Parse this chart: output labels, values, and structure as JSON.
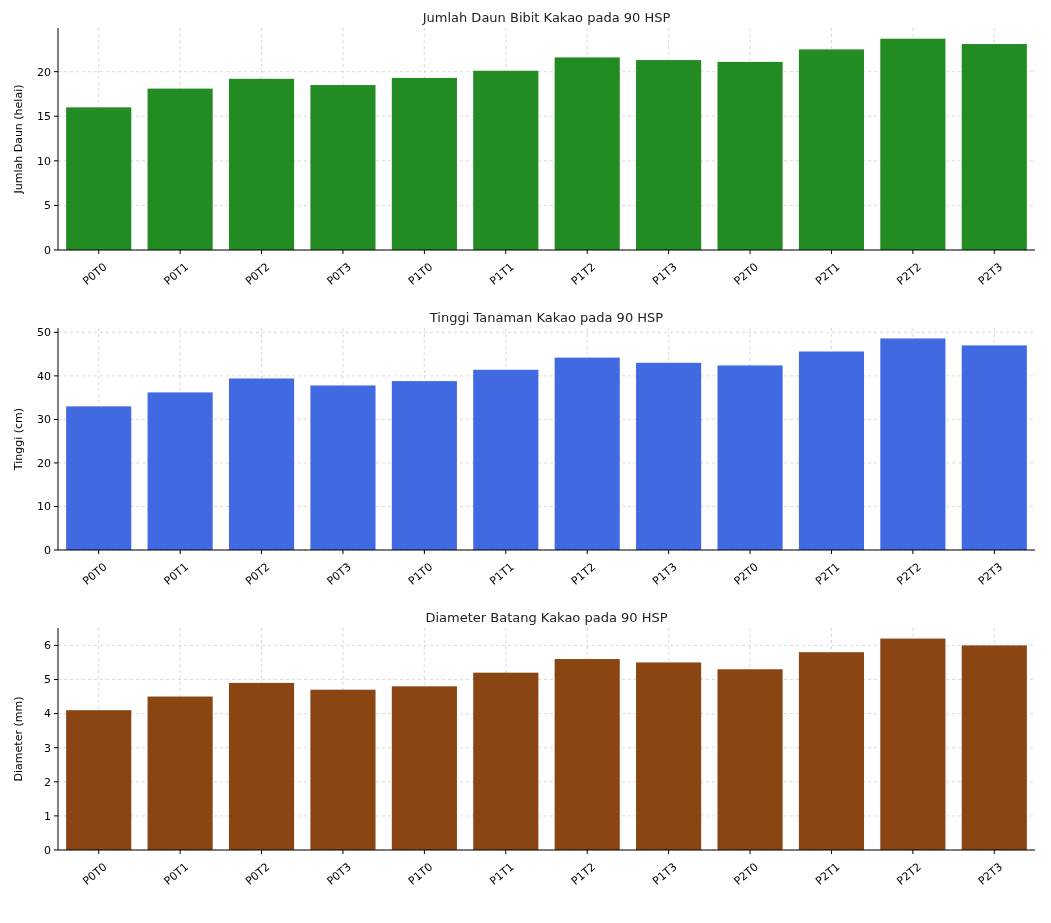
{
  "chart_data": [
    {
      "type": "bar",
      "title": "Jumlah Daun Bibit Kakao pada 90 HSP",
      "ylabel": "Jumlah Daun (helai)",
      "categories": [
        "P0T0",
        "P0T1",
        "P0T2",
        "P0T3",
        "P1T0",
        "P1T1",
        "P1T2",
        "P1T3",
        "P2T0",
        "P2T1",
        "P2T2",
        "P2T3"
      ],
      "values": [
        16.0,
        18.1,
        19.2,
        18.5,
        19.3,
        20.1,
        21.6,
        21.3,
        21.1,
        22.5,
        23.7,
        23.1
      ],
      "color": "#228b22",
      "ylim": [
        0,
        24.9
      ],
      "yticks": [
        0,
        5,
        10,
        15,
        20
      ],
      "grid": true
    },
    {
      "type": "bar",
      "title": "Tinggi Tanaman Kakao pada 90 HSP",
      "ylabel": "Tinggi (cm)",
      "categories": [
        "P0T0",
        "P0T1",
        "P0T2",
        "P0T3",
        "P1T0",
        "P1T1",
        "P1T2",
        "P1T3",
        "P2T0",
        "P2T1",
        "P2T2",
        "P2T3"
      ],
      "values": [
        33.0,
        36.2,
        39.4,
        37.8,
        38.8,
        41.4,
        44.2,
        43.0,
        42.4,
        45.6,
        48.6,
        47.0
      ],
      "color": "#4169e1",
      "ylim": [
        0,
        51
      ],
      "yticks": [
        0,
        10,
        20,
        30,
        40,
        50
      ],
      "grid": true
    },
    {
      "type": "bar",
      "title": "Diameter Batang Kakao pada 90 HSP",
      "ylabel": "Diameter (mm)",
      "categories": [
        "P0T0",
        "P0T1",
        "P0T2",
        "P0T3",
        "P1T0",
        "P1T1",
        "P1T2",
        "P1T3",
        "P2T0",
        "P2T1",
        "P2T2",
        "P2T3"
      ],
      "values": [
        4.1,
        4.5,
        4.9,
        4.7,
        4.8,
        5.2,
        5.6,
        5.5,
        5.3,
        5.8,
        6.2,
        6.0
      ],
      "color": "#8b4513",
      "ylim": [
        0,
        6.51
      ],
      "yticks": [
        0,
        1,
        2,
        3,
        4,
        5,
        6
      ],
      "grid": true
    }
  ]
}
